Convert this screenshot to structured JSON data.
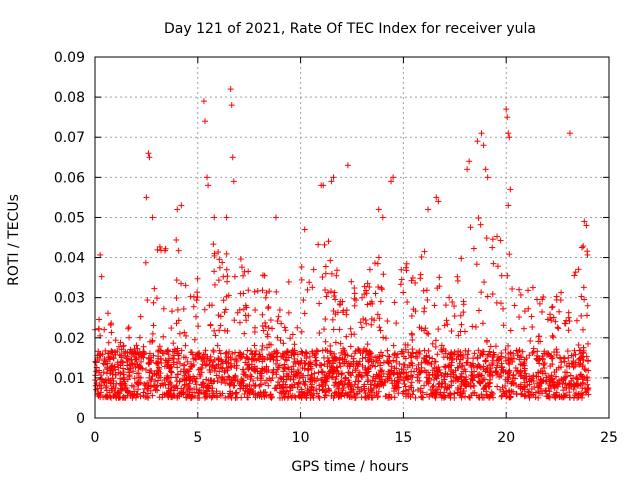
{
  "chart_data": {
    "type": "scatter",
    "title": "Day 121 of 2021, Rate Of TEC Index for receiver yula",
    "xlabel": "GPS time / hours",
    "ylabel": "ROTI / TECUs",
    "xlim": [
      0,
      25
    ],
    "ylim": [
      0,
      0.09
    ],
    "x_ticks": [
      0,
      5,
      10,
      15,
      20,
      25
    ],
    "x_tick_labels": [
      "0",
      "5",
      "10",
      "15",
      "20",
      "25"
    ],
    "y_ticks": [
      0,
      0.01,
      0.02,
      0.03,
      0.04,
      0.05,
      0.06,
      0.07,
      0.08,
      0.09
    ],
    "y_tick_labels": [
      "0",
      "0.01",
      "0.02",
      "0.03",
      "0.04",
      "0.05",
      "0.06",
      "0.07",
      "0.08",
      "0.09"
    ],
    "grid": true,
    "marker": "+",
    "color": "#ff0000",
    "series": [
      {
        "name": "ROTI",
        "x_range": [
          0,
          24
        ],
        "baseline_band": [
          0.005,
          0.02
        ],
        "envelope": [
          [
            0.0,
            0.03
          ],
          [
            0.25,
            0.044
          ],
          [
            0.5,
            0.028
          ],
          [
            1.0,
            0.022
          ],
          [
            1.5,
            0.024
          ],
          [
            2.0,
            0.028
          ],
          [
            2.5,
            0.04
          ],
          [
            3.0,
            0.046
          ],
          [
            3.5,
            0.045
          ],
          [
            4.0,
            0.047
          ],
          [
            4.5,
            0.04
          ],
          [
            5.0,
            0.035
          ],
          [
            5.5,
            0.045
          ],
          [
            6.0,
            0.045
          ],
          [
            6.5,
            0.044
          ],
          [
            7.0,
            0.044
          ],
          [
            7.5,
            0.04
          ],
          [
            8.0,
            0.038
          ],
          [
            8.5,
            0.04
          ],
          [
            9.0,
            0.036
          ],
          [
            9.5,
            0.035
          ],
          [
            10.0,
            0.04
          ],
          [
            10.5,
            0.04
          ],
          [
            11.0,
            0.045
          ],
          [
            11.5,
            0.044
          ],
          [
            12.0,
            0.04
          ],
          [
            12.5,
            0.035
          ],
          [
            13.0,
            0.036
          ],
          [
            13.5,
            0.038
          ],
          [
            14.0,
            0.042
          ],
          [
            14.5,
            0.038
          ],
          [
            15.0,
            0.04
          ],
          [
            15.5,
            0.04
          ],
          [
            16.0,
            0.042
          ],
          [
            16.5,
            0.038
          ],
          [
            17.0,
            0.033
          ],
          [
            17.5,
            0.033
          ],
          [
            18.0,
            0.045
          ],
          [
            18.5,
            0.05
          ],
          [
            19.0,
            0.052
          ],
          [
            19.5,
            0.048
          ],
          [
            20.0,
            0.045
          ],
          [
            20.5,
            0.038
          ],
          [
            21.0,
            0.034
          ],
          [
            21.5,
            0.033
          ],
          [
            22.0,
            0.03
          ],
          [
            22.5,
            0.035
          ],
          [
            23.0,
            0.03
          ],
          [
            23.5,
            0.04
          ],
          [
            24.0,
            0.047
          ]
        ],
        "outliers": [
          [
            5.3,
            0.079
          ],
          [
            5.35,
            0.074
          ],
          [
            5.45,
            0.06
          ],
          [
            5.5,
            0.058
          ],
          [
            6.6,
            0.082
          ],
          [
            6.65,
            0.078
          ],
          [
            6.7,
            0.065
          ],
          [
            6.75,
            0.059
          ],
          [
            2.6,
            0.066
          ],
          [
            2.65,
            0.065
          ],
          [
            2.5,
            0.055
          ],
          [
            2.8,
            0.05
          ],
          [
            4.0,
            0.052
          ],
          [
            4.2,
            0.053
          ],
          [
            5.8,
            0.05
          ],
          [
            6.4,
            0.05
          ],
          [
            8.8,
            0.05
          ],
          [
            10.2,
            0.047
          ],
          [
            11.0,
            0.058
          ],
          [
            11.1,
            0.058
          ],
          [
            11.5,
            0.059
          ],
          [
            11.6,
            0.06
          ],
          [
            12.3,
            0.063
          ],
          [
            13.8,
            0.052
          ],
          [
            14.0,
            0.05
          ],
          [
            14.4,
            0.059
          ],
          [
            14.5,
            0.06
          ],
          [
            16.2,
            0.052
          ],
          [
            16.6,
            0.055
          ],
          [
            16.7,
            0.054
          ],
          [
            18.1,
            0.062
          ],
          [
            18.2,
            0.064
          ],
          [
            18.6,
            0.069
          ],
          [
            18.8,
            0.071
          ],
          [
            18.9,
            0.068
          ],
          [
            19.0,
            0.062
          ],
          [
            19.1,
            0.06
          ],
          [
            20.0,
            0.077
          ],
          [
            20.05,
            0.075
          ],
          [
            20.1,
            0.071
          ],
          [
            20.15,
            0.07
          ],
          [
            20.2,
            0.057
          ],
          [
            20.1,
            0.053
          ],
          [
            23.1,
            0.071
          ],
          [
            23.9,
            0.048
          ],
          [
            23.8,
            0.049
          ]
        ]
      }
    ]
  }
}
